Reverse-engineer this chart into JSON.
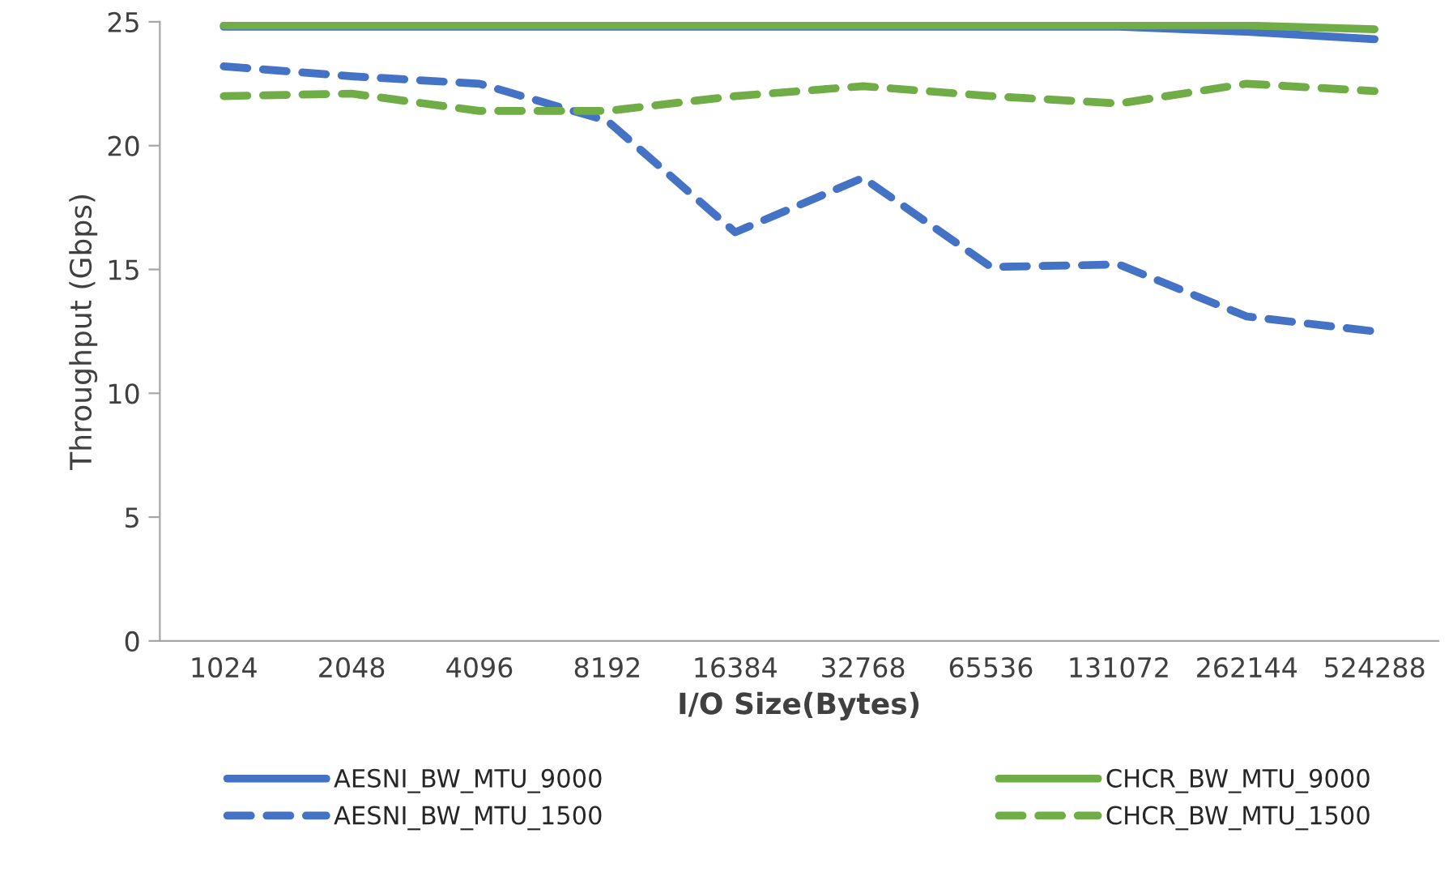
{
  "chart_data": {
    "type": "line",
    "xlabel": "I/O Size(Bytes)",
    "ylabel": "Throughput (Gbps)",
    "categories": [
      "1024",
      "2048",
      "4096",
      "8192",
      "16384",
      "32768",
      "65536",
      "131072",
      "262144",
      "524288"
    ],
    "series": [
      {
        "name": "AESNI_BW_MTU_9000",
        "color": "#4472c4",
        "line_style": "solid",
        "values": [
          24.8,
          24.8,
          24.8,
          24.8,
          24.8,
          24.8,
          24.8,
          24.8,
          24.6,
          24.3
        ]
      },
      {
        "name": "AESNI_BW_MTU_1500",
        "color": "#4472c4",
        "line_style": "dashed",
        "values": [
          23.2,
          22.8,
          22.5,
          21.0,
          16.5,
          18.7,
          15.1,
          15.2,
          13.1,
          12.5
        ]
      },
      {
        "name": "CHCR_BW_MTU_9000",
        "color": "#70ad47",
        "line_style": "solid",
        "values": [
          24.85,
          24.85,
          24.85,
          24.85,
          24.85,
          24.85,
          24.85,
          24.85,
          24.85,
          24.7
        ]
      },
      {
        "name": "CHCR_BW_MTU_1500",
        "color": "#70ad47",
        "line_style": "dashed",
        "values": [
          22.0,
          22.1,
          21.4,
          21.4,
          22.0,
          22.4,
          22.0,
          21.7,
          22.5,
          22.2
        ]
      }
    ],
    "ylim": [
      0,
      25
    ],
    "yticks": [
      0,
      5,
      10,
      15,
      20,
      25
    ],
    "grid": false,
    "legend": "bottom",
    "marker": "none"
  }
}
